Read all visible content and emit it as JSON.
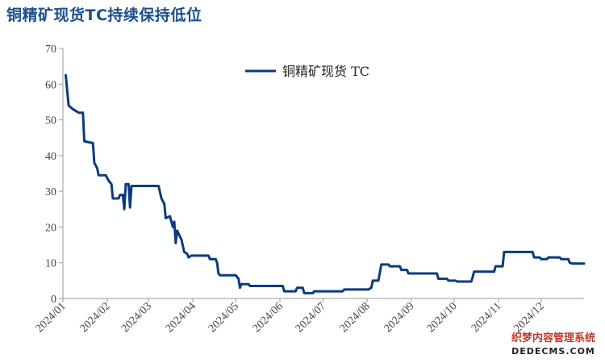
{
  "title": "铜精矿现货TC持续保持低位",
  "watermark": {
    "line1": "织梦内容管理系统",
    "line2": "DEDECMS.COM"
  },
  "colors": {
    "title": "#1a4f8f",
    "line": "#0b3b7c",
    "axis": "#999999"
  },
  "chart_data": {
    "type": "line",
    "title": "铜精矿现货TC持续保持低位",
    "xlabel": "",
    "ylabel": "",
    "ylim": [
      0,
      70
    ],
    "yticks": [
      0,
      10,
      20,
      30,
      40,
      50,
      60,
      70
    ],
    "xlim": [
      "2024-01-01",
      "2024-12-31"
    ],
    "xtick_labels": [
      "2024/01",
      "2024/02",
      "2024/03",
      "2024/04",
      "2024/05",
      "2024/06",
      "2024/07",
      "2024/08",
      "2024/09",
      "2024/10",
      "2024/11",
      "2024/12"
    ],
    "grid": false,
    "legend": {
      "position": "top-center",
      "entries": [
        "铜精矿现货 TC"
      ]
    },
    "series": [
      {
        "name": "铜精矿现货 TC",
        "points": [
          [
            "2024-01-03",
            62.5
          ],
          [
            "2024-01-05",
            54
          ],
          [
            "2024-01-08",
            53
          ],
          [
            "2024-01-12",
            52
          ],
          [
            "2024-01-15",
            52
          ],
          [
            "2024-01-16",
            44
          ],
          [
            "2024-01-22",
            43.5
          ],
          [
            "2024-01-23",
            38
          ],
          [
            "2024-01-25",
            36.5
          ],
          [
            "2024-01-26",
            34.5
          ],
          [
            "2024-01-31",
            34.5
          ],
          [
            "2024-02-02",
            33
          ],
          [
            "2024-02-04",
            32
          ],
          [
            "2024-02-05",
            28
          ],
          [
            "2024-02-09",
            28
          ],
          [
            "2024-02-10",
            29
          ],
          [
            "2024-02-12",
            29
          ],
          [
            "2024-02-13",
            25
          ],
          [
            "2024-02-14",
            32
          ],
          [
            "2024-02-16",
            32
          ],
          [
            "2024-02-17",
            25.5
          ],
          [
            "2024-02-18",
            31.5
          ],
          [
            "2024-03-08",
            31.5
          ],
          [
            "2024-03-10",
            28
          ],
          [
            "2024-03-12",
            26.5
          ],
          [
            "2024-03-13",
            22.5
          ],
          [
            "2024-03-16",
            23
          ],
          [
            "2024-03-18",
            20
          ],
          [
            "2024-03-19",
            21.5
          ],
          [
            "2024-03-20",
            15.5
          ],
          [
            "2024-03-21",
            19
          ],
          [
            "2024-03-24",
            16.5
          ],
          [
            "2024-03-26",
            13
          ],
          [
            "2024-03-28",
            12.5
          ],
          [
            "2024-03-29",
            11.5
          ],
          [
            "2024-03-31",
            12
          ],
          [
            "2024-04-12",
            12
          ],
          [
            "2024-04-13",
            11
          ],
          [
            "2024-04-17",
            11
          ],
          [
            "2024-04-18",
            10
          ],
          [
            "2024-04-19",
            7
          ],
          [
            "2024-04-20",
            6.5
          ],
          [
            "2024-05-01",
            6.5
          ],
          [
            "2024-05-02",
            6
          ],
          [
            "2024-05-03",
            5.5
          ],
          [
            "2024-05-04",
            3
          ],
          [
            "2024-05-05",
            4
          ],
          [
            "2024-05-10",
            4
          ],
          [
            "2024-05-11",
            3.5
          ],
          [
            "2024-06-03",
            3.5
          ],
          [
            "2024-06-04",
            2
          ],
          [
            "2024-06-12",
            2
          ],
          [
            "2024-06-13",
            3
          ],
          [
            "2024-06-17",
            3
          ],
          [
            "2024-06-18",
            1.5
          ],
          [
            "2024-06-24",
            1.5
          ],
          [
            "2024-06-25",
            2
          ],
          [
            "2024-07-15",
            2
          ],
          [
            "2024-07-16",
            2.5
          ],
          [
            "2024-08-02",
            2.5
          ],
          [
            "2024-08-04",
            3
          ],
          [
            "2024-08-05",
            5
          ],
          [
            "2024-08-09",
            5
          ],
          [
            "2024-08-11",
            9.5
          ],
          [
            "2024-08-16",
            9.5
          ],
          [
            "2024-08-17",
            9
          ],
          [
            "2024-08-24",
            9
          ],
          [
            "2024-08-25",
            8
          ],
          [
            "2024-08-29",
            8
          ],
          [
            "2024-08-30",
            7
          ],
          [
            "2024-09-19",
            7
          ],
          [
            "2024-09-20",
            5.5
          ],
          [
            "2024-09-26",
            5.5
          ],
          [
            "2024-09-27",
            5
          ],
          [
            "2024-10-02",
            5
          ],
          [
            "2024-10-03",
            4.75
          ],
          [
            "2024-10-13",
            4.75
          ],
          [
            "2024-10-14",
            6
          ],
          [
            "2024-10-15",
            7.5
          ],
          [
            "2024-10-29",
            7.5
          ],
          [
            "2024-10-30",
            9
          ],
          [
            "2024-11-04",
            9
          ],
          [
            "2024-11-05",
            13
          ],
          [
            "2024-11-25",
            13
          ],
          [
            "2024-11-26",
            11.5
          ],
          [
            "2024-11-30",
            11.5
          ],
          [
            "2024-12-01",
            11
          ],
          [
            "2024-12-05",
            11
          ],
          [
            "2024-12-06",
            11.5
          ],
          [
            "2024-12-14",
            11.5
          ],
          [
            "2024-12-15",
            11
          ],
          [
            "2024-12-20",
            11
          ],
          [
            "2024-12-21",
            10
          ],
          [
            "2024-12-23",
            9.75
          ],
          [
            "2024-12-31",
            9.75
          ]
        ]
      }
    ]
  }
}
